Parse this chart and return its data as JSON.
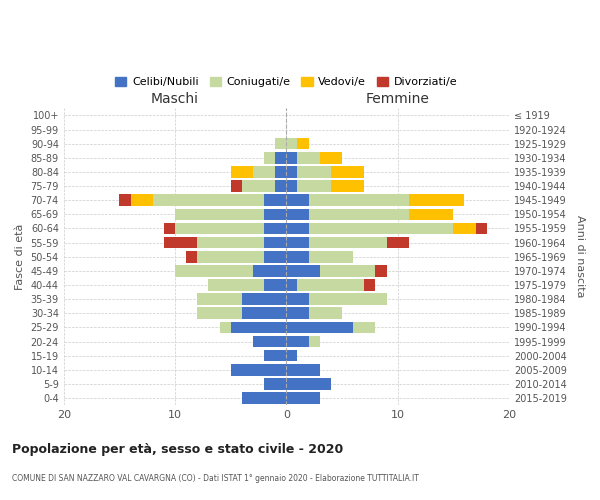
{
  "age_groups": [
    "100+",
    "95-99",
    "90-94",
    "85-89",
    "80-84",
    "75-79",
    "70-74",
    "65-69",
    "60-64",
    "55-59",
    "50-54",
    "45-49",
    "40-44",
    "35-39",
    "30-34",
    "25-29",
    "20-24",
    "15-19",
    "10-14",
    "5-9",
    "0-4"
  ],
  "birth_years": [
    "≤ 1919",
    "1920-1924",
    "1925-1929",
    "1930-1934",
    "1935-1939",
    "1940-1944",
    "1945-1949",
    "1950-1954",
    "1955-1959",
    "1960-1964",
    "1965-1969",
    "1970-1974",
    "1975-1979",
    "1980-1984",
    "1985-1989",
    "1990-1994",
    "1995-1999",
    "2000-2004",
    "2005-2009",
    "2010-2014",
    "2015-2019"
  ],
  "maschi_celibi": [
    0,
    0,
    0,
    1,
    1,
    1,
    2,
    2,
    2,
    2,
    2,
    3,
    2,
    4,
    4,
    5,
    3,
    2,
    5,
    2,
    4
  ],
  "maschi_coniugati": [
    0,
    0,
    1,
    1,
    2,
    3,
    10,
    8,
    8,
    6,
    6,
    7,
    5,
    4,
    4,
    1,
    0,
    0,
    0,
    0,
    0
  ],
  "maschi_vedovi": [
    0,
    0,
    0,
    0,
    2,
    0,
    2,
    0,
    0,
    0,
    0,
    0,
    0,
    0,
    0,
    0,
    0,
    0,
    0,
    0,
    0
  ],
  "maschi_divorziati": [
    0,
    0,
    0,
    0,
    0,
    1,
    1,
    0,
    1,
    3,
    1,
    0,
    0,
    0,
    0,
    0,
    0,
    0,
    0,
    0,
    0
  ],
  "femmine_celibi": [
    0,
    0,
    0,
    1,
    1,
    1,
    2,
    2,
    2,
    2,
    2,
    3,
    1,
    2,
    2,
    6,
    2,
    1,
    3,
    4,
    3
  ],
  "femmine_coniugati": [
    0,
    0,
    1,
    2,
    3,
    3,
    9,
    9,
    13,
    7,
    4,
    5,
    6,
    7,
    3,
    2,
    1,
    0,
    0,
    0,
    0
  ],
  "femmine_vedovi": [
    0,
    0,
    1,
    2,
    3,
    3,
    5,
    4,
    2,
    0,
    0,
    0,
    0,
    0,
    0,
    0,
    0,
    0,
    0,
    0,
    0
  ],
  "femmine_divorziati": [
    0,
    0,
    0,
    0,
    0,
    0,
    0,
    0,
    1,
    2,
    0,
    1,
    1,
    0,
    0,
    0,
    0,
    0,
    0,
    0,
    0
  ],
  "colors": {
    "celibi": "#4472c4",
    "coniugati": "#c5d9a0",
    "vedovi": "#ffc000",
    "divorziati": "#c0392b"
  },
  "title": "Popolazione per età, sesso e stato civile - 2020",
  "subtitle": "COMUNE DI SAN NAZZARO VAL CAVARGNA (CO) - Dati ISTAT 1° gennaio 2020 - Elaborazione TUTTITALIA.IT",
  "xlabel_left": "Maschi",
  "xlabel_right": "Femmine",
  "ylabel_left": "Fasce di età",
  "ylabel_right": "Anni di nascita",
  "xlim": 20,
  "legend_labels": [
    "Celibi/Nubili",
    "Coniugati/e",
    "Vedovi/e",
    "Divorziati/e"
  ],
  "background_color": "#ffffff",
  "grid_color": "#cccccc",
  "bar_height": 0.82
}
